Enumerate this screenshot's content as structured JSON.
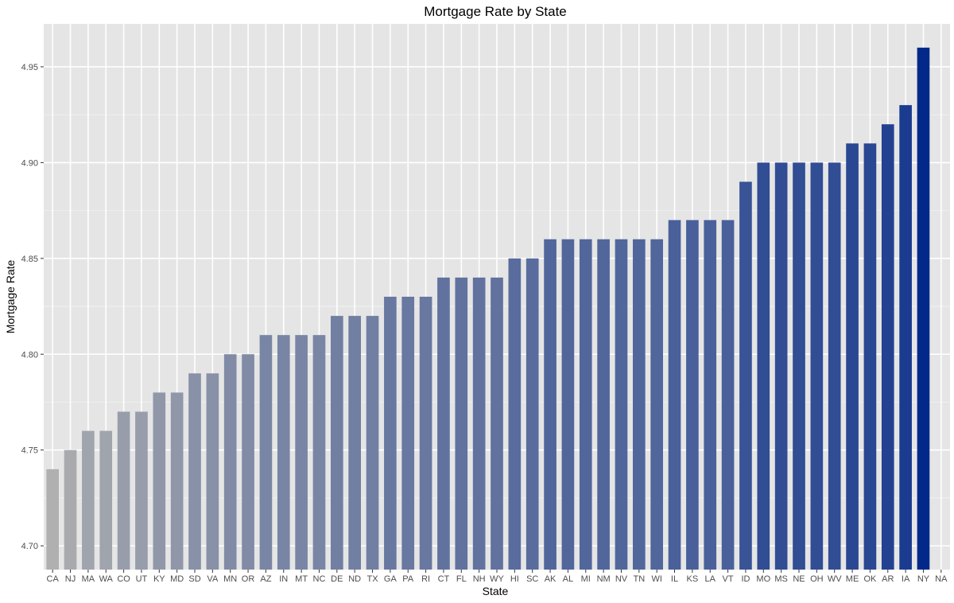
{
  "chart_data": {
    "type": "bar",
    "title": "Mortgage Rate by State",
    "xlabel": "State",
    "ylabel": "Mortgage Rate",
    "categories": [
      "CA",
      "NJ",
      "MA",
      "WA",
      "CO",
      "UT",
      "KY",
      "MD",
      "SD",
      "VA",
      "MN",
      "OR",
      "AZ",
      "IN",
      "MT",
      "NC",
      "DE",
      "ND",
      "TX",
      "GA",
      "PA",
      "RI",
      "CT",
      "FL",
      "NH",
      "WY",
      "HI",
      "SC",
      "AK",
      "AL",
      "MI",
      "NM",
      "NV",
      "TN",
      "WI",
      "IL",
      "KS",
      "LA",
      "VT",
      "ID",
      "MO",
      "MS",
      "NE",
      "OH",
      "WV",
      "ME",
      "OK",
      "AR",
      "IA",
      "NY",
      "NA"
    ],
    "values": [
      4.74,
      4.75,
      4.76,
      4.76,
      4.77,
      4.77,
      4.78,
      4.78,
      4.79,
      4.79,
      4.8,
      4.8,
      4.81,
      4.81,
      4.81,
      4.81,
      4.82,
      4.82,
      4.82,
      4.83,
      4.83,
      4.83,
      4.84,
      4.84,
      4.84,
      4.84,
      4.85,
      4.85,
      4.86,
      4.86,
      4.86,
      4.86,
      4.86,
      4.86,
      4.86,
      4.87,
      4.87,
      4.87,
      4.87,
      4.89,
      4.9,
      4.9,
      4.9,
      4.9,
      4.9,
      4.91,
      4.91,
      4.92,
      4.93,
      4.96,
      null
    ],
    "yticks": [
      4.7,
      4.75,
      4.8,
      4.85,
      4.9,
      4.95
    ],
    "ytick_labels": [
      "4.70",
      "4.75",
      "4.80",
      "4.85",
      "4.90",
      "4.95"
    ],
    "ylim": [
      4.6876,
      4.9724
    ],
    "grid": true,
    "legend": "none",
    "colors": {
      "panel_background": "#e5e5e5",
      "grid_major": "#ffffff",
      "grid_minor": "#f2f2f2",
      "bar_low": "#b0b0b0",
      "bar_high": "#02288a"
    }
  }
}
